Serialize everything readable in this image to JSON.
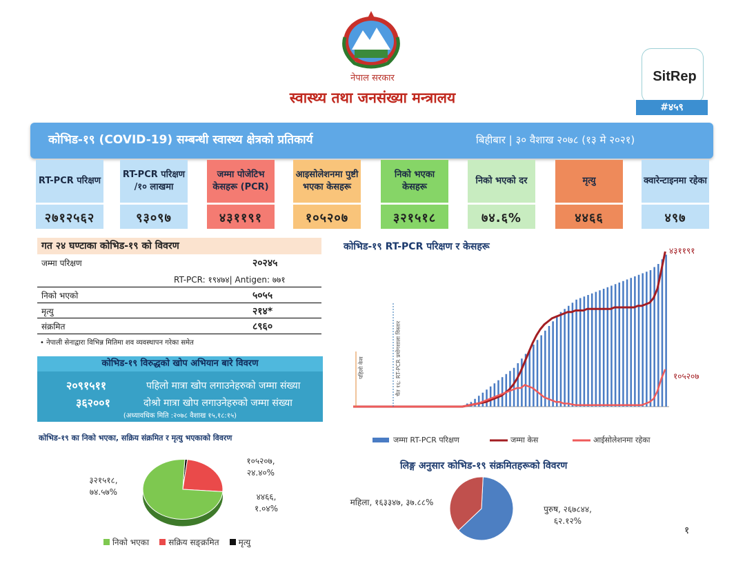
{
  "header": {
    "government": "नेपाल सरकार",
    "ministry": "स्वास्थ्य तथा जनसंख्या मन्त्रालय",
    "sitrep_label": "SitRep",
    "sitrep_number": "#४५९"
  },
  "banner": {
    "title": "कोभिड-१९ (COVID-19) सम्बन्धी स्वास्थ्य क्षेत्रको प्रतिकार्य",
    "date": "बिहीबार | ३० वैशाख २०७८ (१३ मे २०२१)"
  },
  "cards": [
    {
      "label": "RT-PCR परिक्षण",
      "value": "२७१२५६२",
      "color": "#bfe0f7"
    },
    {
      "label": "RT-PCR परिक्षण /१० लाखमा",
      "value": "९३०९७",
      "color": "#bfe0f7"
    },
    {
      "label": "जम्मा पोजेटिभ केसहरू (PCR)",
      "value": "४३११९१",
      "color": "#f47b72"
    },
    {
      "label": "आइसोलेशनमा पुष्टी भएका केसहरू",
      "value": "१०५२०७",
      "color": "#f9c47a"
    },
    {
      "label": "निको भएका केसहरू",
      "value": "३२१५१८",
      "color": "#86d567"
    },
    {
      "label": "निको भएको दर",
      "value": "७४.६%",
      "color": "#c8ecc0"
    },
    {
      "label": "मृत्यु",
      "value": "४४६६",
      "color": "#ee8a5a"
    },
    {
      "label": "क्वारेन्टाइनमा रहेका",
      "value": "४९७",
      "color": "#bfe0f7"
    }
  ],
  "last24": {
    "title": "गत २४ घण्टाका कोभिड-१९ को विवरण",
    "rows": [
      {
        "label": "जम्मा परिक्षण",
        "value": "२०२४५"
      },
      {
        "label": "निको भएको",
        "value": "५०५५"
      },
      {
        "label": "मृत्यु",
        "value": "२१४*"
      },
      {
        "label": "संक्रमित",
        "value": "८९६०"
      }
    ],
    "test_breakdown": "RT-PCR: १९४७४| Antigen: ७७१",
    "footnote": "• नेपाली सेनाद्वारा विभिन्न मितिमा शव व्यवस्थापन गरेका समेत"
  },
  "vaccination": {
    "title": "कोभिड-१९ विरुद्धको खोप अभियान बारे विवरण",
    "first_count": "२०९१५११",
    "first_text": "पहिलो मात्रा खोप लगाउनेहरुको जम्मा संख्या",
    "second_count": "३६२००१",
    "second_text": "दोश्रो मात्रा खोप लगाउनेहरुको जम्मा संख्या",
    "note": "(अध्यावधिक मिति :२०७८ वैशाख १५,१८:१५)"
  },
  "chart_data": [
    {
      "type": "bar",
      "title": "कोभिड-१९ RT-PCR परिक्षण र केसहरू",
      "series": [
        {
          "name": "जम्मा RT-PCR परिक्षण",
          "color": "#4a7cc4"
        },
        {
          "name": "जम्मा केस",
          "color": "#a31d22"
        },
        {
          "name": "आईसोलेशनमा रहेका",
          "color": "#ef5a5a"
        }
      ],
      "end_labels": {
        "total_cases": "४३११९१",
        "isolation": "१०५२०७"
      },
      "annotations": [
        "पहिलो केस",
        "चैत १६: RT-PCR प्रयोगशाला विस्तार"
      ],
      "tests_norm": [
        0,
        0,
        0,
        0,
        0,
        0,
        0,
        0,
        0,
        0,
        0,
        0,
        0,
        0,
        0,
        0,
        0,
        0,
        0,
        0,
        0,
        0,
        0,
        0,
        0,
        0,
        0,
        0,
        0,
        0.02,
        0.03,
        0.05,
        0.07,
        0.09,
        0.11,
        0.13,
        0.15,
        0.17,
        0.19,
        0.21,
        0.23,
        0.25,
        0.28,
        0.31,
        0.34,
        0.37,
        0.4,
        0.43,
        0.46,
        0.49,
        0.52,
        0.55,
        0.58,
        0.61,
        0.63,
        0.65,
        0.67,
        0.69,
        0.7,
        0.71,
        0.72,
        0.73,
        0.74,
        0.75,
        0.76,
        0.77,
        0.78,
        0.79,
        0.8,
        0.81,
        0.82,
        0.83,
        0.84,
        0.85,
        0.86,
        0.87,
        0.88,
        0.9,
        0.92,
        0.95,
        0.98
      ],
      "cases_norm": [
        0,
        0,
        0,
        0,
        0,
        0,
        0,
        0,
        0,
        0,
        0,
        0,
        0,
        0,
        0,
        0,
        0,
        0,
        0,
        0,
        0,
        0,
        0,
        0,
        0,
        0,
        0,
        0,
        0,
        0.005,
        0.01,
        0.015,
        0.02,
        0.025,
        0.03,
        0.04,
        0.05,
        0.06,
        0.07,
        0.09,
        0.11,
        0.14,
        0.18,
        0.23,
        0.29,
        0.35,
        0.41,
        0.46,
        0.5,
        0.53,
        0.55,
        0.57,
        0.58,
        0.59,
        0.6,
        0.61,
        0.61,
        0.62,
        0.62,
        0.62,
        0.63,
        0.63,
        0.63,
        0.63,
        0.63,
        0.63,
        0.63,
        0.64,
        0.64,
        0.64,
        0.64,
        0.64,
        0.64,
        0.65,
        0.65,
        0.66,
        0.67,
        0.7,
        0.76,
        0.88,
        1.0
      ],
      "isolation_norm": [
        0,
        0,
        0,
        0,
        0,
        0,
        0,
        0,
        0,
        0,
        0,
        0,
        0,
        0,
        0,
        0,
        0,
        0,
        0,
        0,
        0,
        0,
        0,
        0,
        0,
        0,
        0,
        0,
        0,
        0.005,
        0.01,
        0.015,
        0.02,
        0.03,
        0.04,
        0.05,
        0.06,
        0.07,
        0.08,
        0.09,
        0.1,
        0.11,
        0.12,
        0.12,
        0.14,
        0.13,
        0.12,
        0.1,
        0.08,
        0.06,
        0.05,
        0.04,
        0.03,
        0.03,
        0.02,
        0.02,
        0.015,
        0.01,
        0.01,
        0.01,
        0.01,
        0.01,
        0.01,
        0.01,
        0.01,
        0.01,
        0.01,
        0.01,
        0.01,
        0.01,
        0.01,
        0.01,
        0.01,
        0.01,
        0.01,
        0.02,
        0.03,
        0.05,
        0.1,
        0.18,
        0.24
      ]
    },
    {
      "type": "pie",
      "title": "कोभिड-१९ का निको भएका, सक्रिय संक्रमित र मृत्यु भएकाको विवरण",
      "slices": [
        {
          "name": "निको भएका",
          "value": 74.57,
          "label": "३२१५१८, ७४.५७%",
          "color": "#7ec850"
        },
        {
          "name": "सक्रिय सङ्क्रमित",
          "value": 24.4,
          "label": "१०५२०७, २४.४०%",
          "color": "#ea4a4a"
        },
        {
          "name": "मृत्यु",
          "value": 1.04,
          "label": "४४६६, १.०४%",
          "color": "#111111"
        }
      ]
    },
    {
      "type": "pie",
      "title": "लिङ्ग अनुसार कोभिड-१९ संक्रमितहरूको विवरण",
      "slices": [
        {
          "name": "पुरुष",
          "value": 62.12,
          "label": "पुरुष, २६७८४४, ६२.१२%",
          "color": "#4d7fc2"
        },
        {
          "name": "महिला",
          "value": 37.88,
          "label": "महिला, १६३३४७, ३७.८८%",
          "color": "#c0504d"
        }
      ]
    }
  ],
  "page_number": "१"
}
